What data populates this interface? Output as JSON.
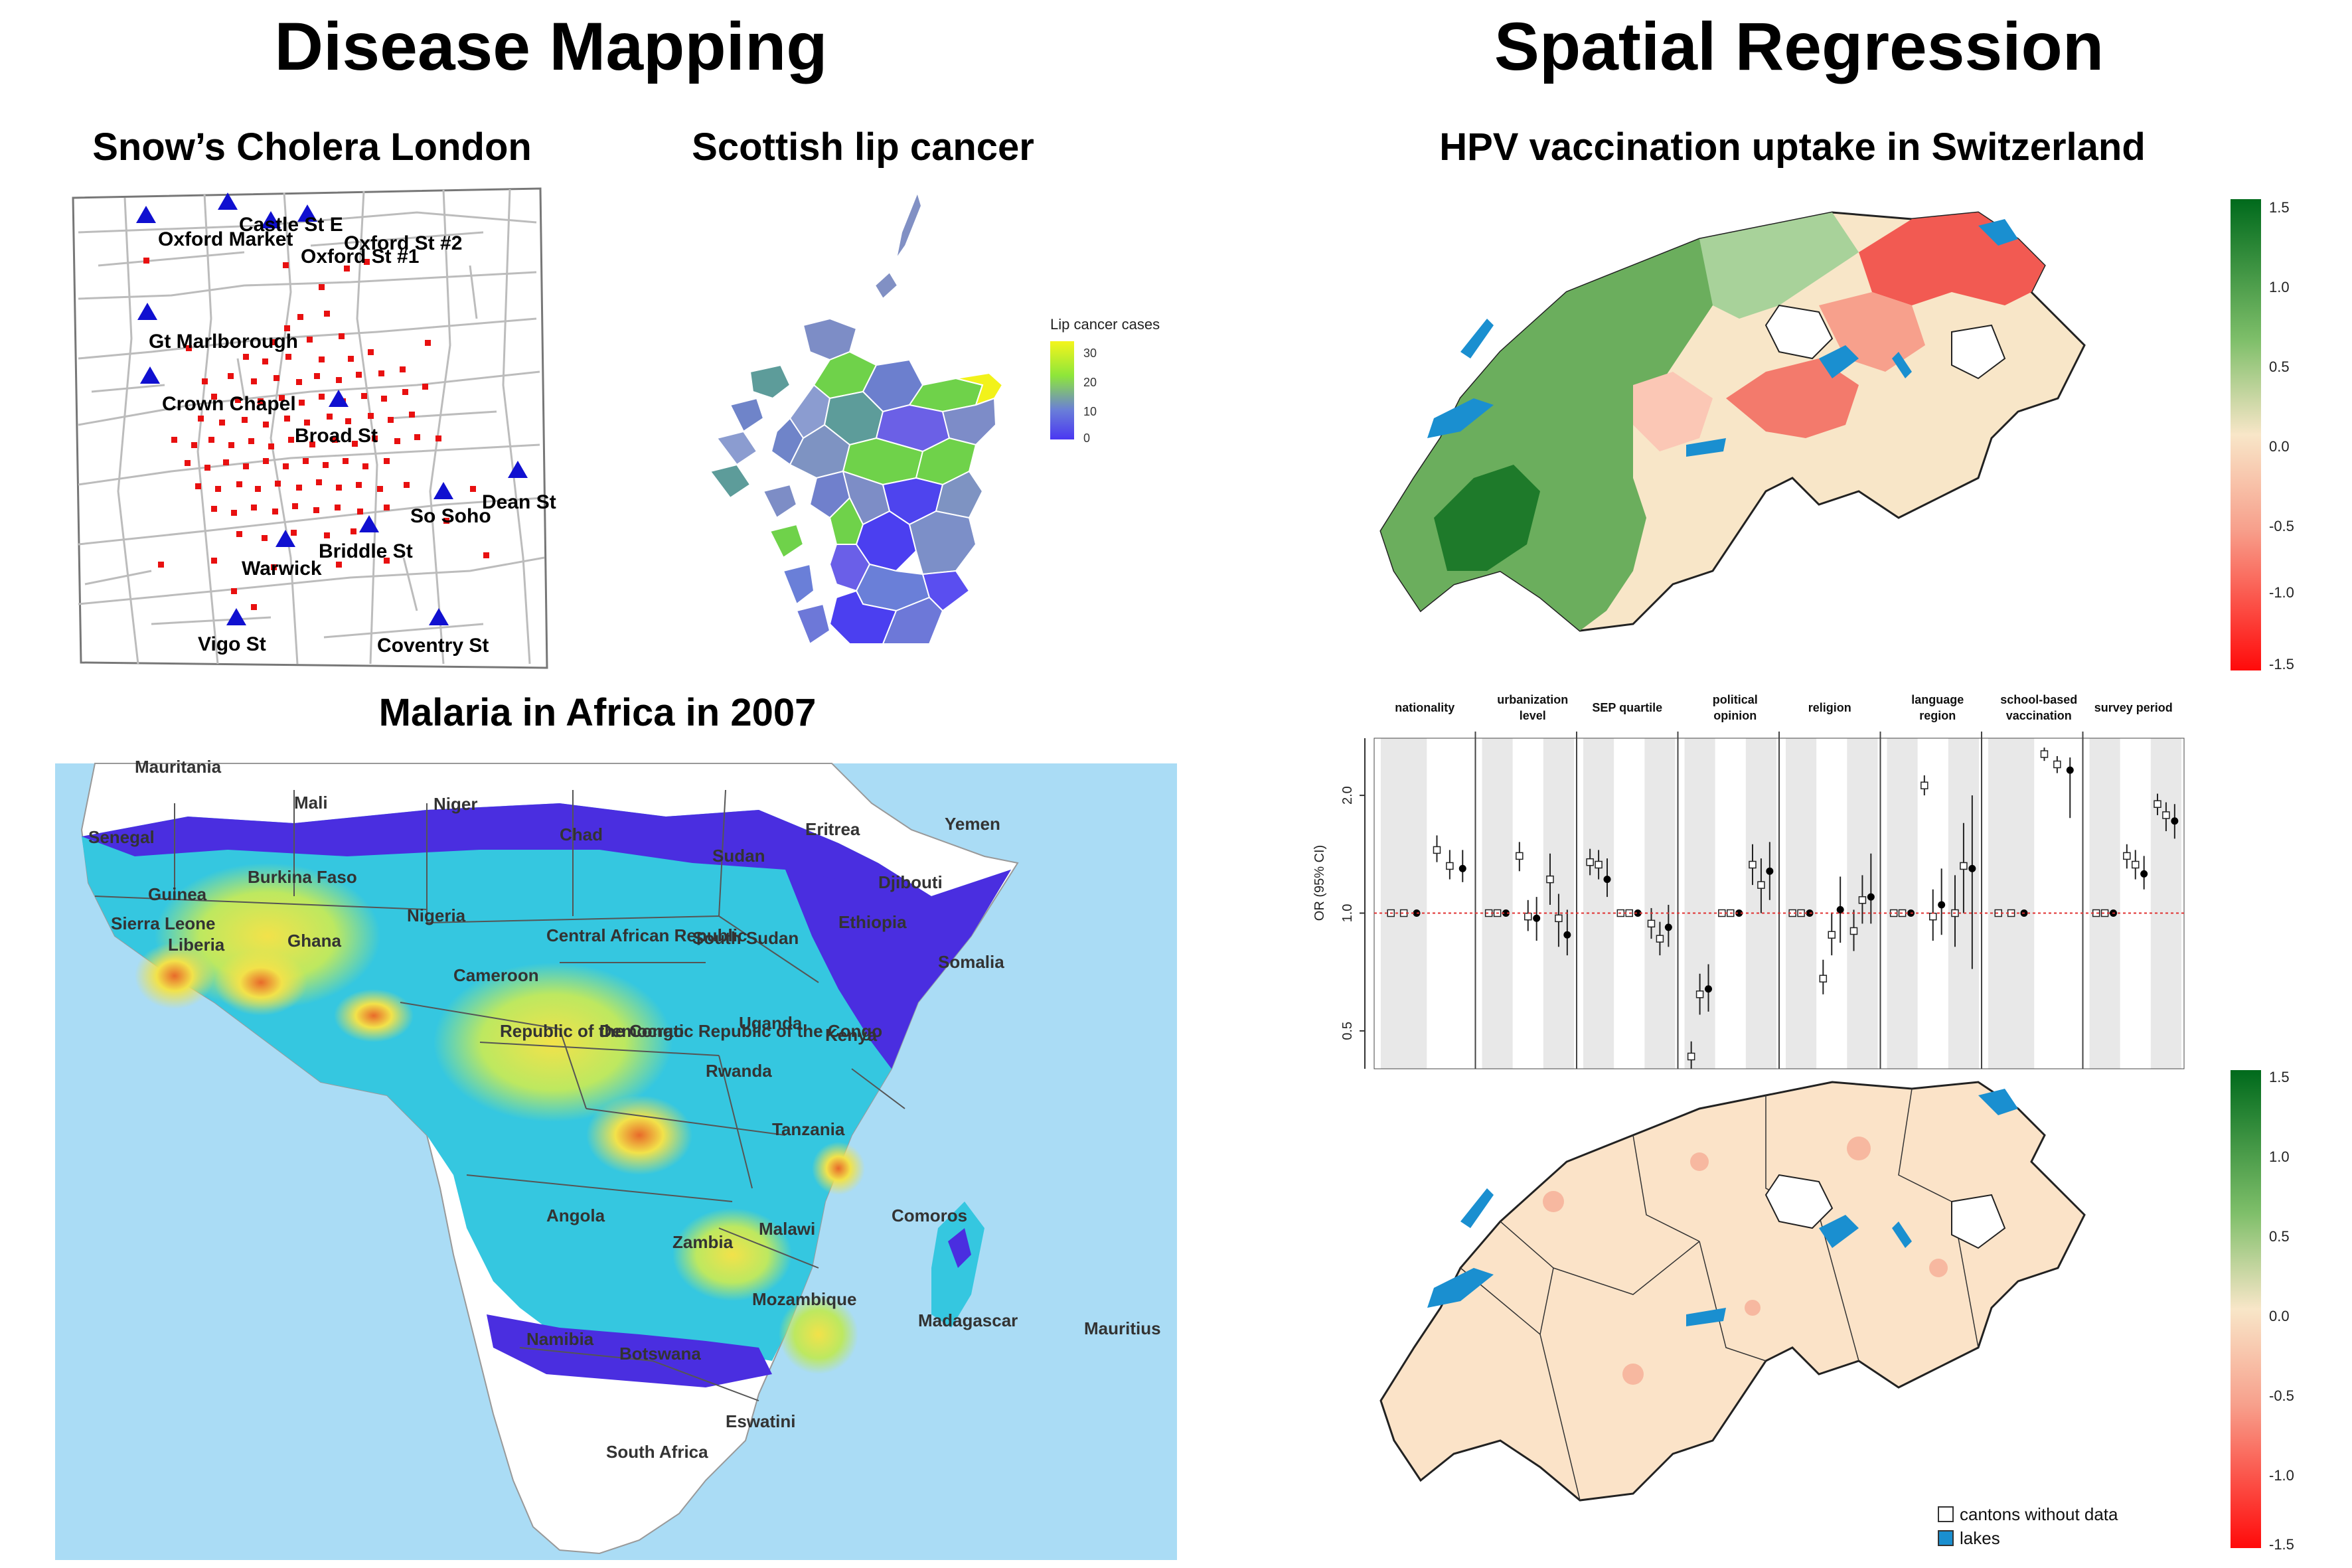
{
  "headings": {
    "left": "Disease Mapping",
    "right": "Spatial Regression"
  },
  "cholera": {
    "title": "Snow’s Cholera London",
    "pumps": [
      "Castle St E",
      "Oxford Market",
      "Oxford St #2",
      "Oxford St #1",
      "Gt Marlborough",
      "Crown Chapel",
      "Broad St",
      "Dean St",
      "So Soho",
      "Briddle St",
      "Warwick",
      "Vigo St",
      "Coventry St"
    ],
    "marker_colors": {
      "pump": "#1010d0",
      "death": "#e81010"
    }
  },
  "scotland": {
    "title": "Scottish lip cancer",
    "legend_title": "Lip cancer cases",
    "legend_ticks": [
      "30",
      "20",
      "10",
      "0"
    ],
    "colors": [
      "#4b3ff0",
      "#7d8cc8",
      "#6fd24a",
      "#f2f21a"
    ]
  },
  "malaria": {
    "title": "Malaria in Africa in 2007",
    "countries": [
      "Mauritania",
      "Mali",
      "Niger",
      "Chad",
      "Eritrea",
      "Yemen",
      "Senegal",
      "Sudan",
      "Djibouti",
      "Burkina Faso",
      "Guinea",
      "Nigeria",
      "Ethiopia",
      "Sierra Leone",
      "Liberia",
      "Ghana",
      "Central African Republic",
      "South Sudan",
      "Somalia",
      "Cameroon",
      "Uganda",
      "Kenya",
      "Republic of the Congo",
      "Democratic Republic of the Congo",
      "Rwanda",
      "Tanzania",
      "Angola",
      "Comoros",
      "Zambia",
      "Malawi",
      "Mozambique",
      "Madagascar",
      "Mauritius",
      "Namibia",
      "Botswana",
      "Eswatini",
      "South Africa"
    ],
    "colors": {
      "ocean": "#aadcf5",
      "low": "#4a2ee0",
      "mid": "#35c7e0",
      "high": "#f2e24a",
      "peak": "#e86a2a"
    }
  },
  "hpv": {
    "title": "HPV vaccination uptake in Switzerland",
    "scale_ticks": [
      "1.5",
      "1.0",
      "0.5",
      "0.0",
      "-0.5",
      "-1.0",
      "-1.5"
    ],
    "legend": {
      "no_data": "cantons without data",
      "lakes": "lakes"
    },
    "colors": {
      "positive": "#1e7a2a",
      "negative": "#ff1010",
      "neutral": "#f8e6c8",
      "lake": "#1a8fd0"
    }
  },
  "chart_data": {
    "type": "scatter",
    "ylabel": "OR (95% CI)",
    "yscale": "log",
    "ylim": [
      0.4,
      2.8
    ],
    "yticks": [
      "0.5",
      "1.0",
      "2.0"
    ],
    "reference_line": 1.0,
    "panels": [
      {
        "title": "nationality",
        "points": [
          {
            "or": 1.0,
            "lo": 0.98,
            "hi": 1.02,
            "filled": false
          },
          {
            "or": 1.0,
            "lo": 0.98,
            "hi": 1.02,
            "filled": false
          },
          {
            "or": 1.0,
            "lo": 0.98,
            "hi": 1.02,
            "filled": true
          },
          {
            "or": 1.45,
            "lo": 1.35,
            "hi": 1.58,
            "filled": false
          },
          {
            "or": 1.32,
            "lo": 1.22,
            "hi": 1.45,
            "filled": false
          },
          {
            "or": 1.3,
            "lo": 1.2,
            "hi": 1.45,
            "filled": true
          }
        ]
      },
      {
        "title": "urbanization level",
        "points": [
          {
            "or": 1.0,
            "lo": 0.98,
            "hi": 1.02,
            "filled": false
          },
          {
            "or": 1.0,
            "lo": 0.98,
            "hi": 1.02,
            "filled": false
          },
          {
            "or": 1.0,
            "lo": 0.98,
            "hi": 1.02,
            "filled": true
          },
          {
            "or": 1.4,
            "lo": 1.28,
            "hi": 1.52,
            "filled": false
          },
          {
            "or": 0.98,
            "lo": 0.9,
            "hi": 1.08,
            "filled": false
          },
          {
            "or": 0.97,
            "lo": 0.85,
            "hi": 1.1,
            "filled": true
          },
          {
            "or": 1.22,
            "lo": 1.05,
            "hi": 1.42,
            "filled": false
          },
          {
            "or": 0.97,
            "lo": 0.82,
            "hi": 1.12,
            "filled": false
          },
          {
            "or": 0.88,
            "lo": 0.78,
            "hi": 1.02,
            "filled": true
          }
        ]
      },
      {
        "title": "SEP quartile",
        "points": [
          {
            "or": 1.35,
            "lo": 1.25,
            "hi": 1.46,
            "filled": false
          },
          {
            "or": 1.33,
            "lo": 1.22,
            "hi": 1.45,
            "filled": false
          },
          {
            "or": 1.22,
            "lo": 1.1,
            "hi": 1.38,
            "filled": true
          },
          {
            "or": 1.0,
            "lo": 0.98,
            "hi": 1.02,
            "filled": false
          },
          {
            "or": 1.0,
            "lo": 0.98,
            "hi": 1.02,
            "filled": false
          },
          {
            "or": 1.0,
            "lo": 0.98,
            "hi": 1.02,
            "filled": true
          },
          {
            "or": 0.94,
            "lo": 0.86,
            "hi": 1.03,
            "filled": false
          },
          {
            "or": 0.86,
            "lo": 0.78,
            "hi": 0.95,
            "filled": false
          },
          {
            "or": 0.92,
            "lo": 0.82,
            "hi": 1.05,
            "filled": true
          }
        ]
      },
      {
        "title": "political opinion",
        "points": [
          {
            "or": 0.43,
            "lo": 0.4,
            "hi": 0.47,
            "filled": false
          },
          {
            "or": 0.62,
            "lo": 0.55,
            "hi": 0.7,
            "filled": false
          },
          {
            "or": 0.64,
            "lo": 0.56,
            "hi": 0.74,
            "filled": true
          },
          {
            "or": 1.0,
            "lo": 0.98,
            "hi": 1.02,
            "filled": false
          },
          {
            "or": 1.0,
            "lo": 0.98,
            "hi": 1.02,
            "filled": false
          },
          {
            "or": 1.0,
            "lo": 0.98,
            "hi": 1.02,
            "filled": true
          },
          {
            "or": 1.33,
            "lo": 1.18,
            "hi": 1.5,
            "filled": false
          },
          {
            "or": 1.18,
            "lo": 1.0,
            "hi": 1.38,
            "filled": false
          },
          {
            "or": 1.28,
            "lo": 1.08,
            "hi": 1.52,
            "filled": true
          }
        ]
      },
      {
        "title": "religion",
        "points": [
          {
            "or": 1.0,
            "lo": 0.98,
            "hi": 1.02,
            "filled": false
          },
          {
            "or": 1.0,
            "lo": 0.98,
            "hi": 1.02,
            "filled": false
          },
          {
            "or": 1.0,
            "lo": 0.98,
            "hi": 1.02,
            "filled": true
          },
          {
            "or": 0.68,
            "lo": 0.62,
            "hi": 0.76,
            "filled": false
          },
          {
            "or": 0.88,
            "lo": 0.78,
            "hi": 1.0,
            "filled": false
          },
          {
            "or": 1.02,
            "lo": 0.84,
            "hi": 1.24,
            "filled": true
          },
          {
            "or": 0.9,
            "lo": 0.8,
            "hi": 1.02,
            "filled": false
          },
          {
            "or": 1.08,
            "lo": 0.94,
            "hi": 1.25,
            "filled": false
          },
          {
            "or": 1.1,
            "lo": 0.94,
            "hi": 1.42,
            "filled": true
          }
        ]
      },
      {
        "title": "language region",
        "points": [
          {
            "or": 1.0,
            "lo": 0.98,
            "hi": 1.02,
            "filled": false
          },
          {
            "or": 1.0,
            "lo": 0.98,
            "hi": 1.02,
            "filled": false
          },
          {
            "or": 1.0,
            "lo": 0.98,
            "hi": 1.02,
            "filled": true
          },
          {
            "or": 2.12,
            "lo": 2.0,
            "hi": 2.25,
            "filled": false
          },
          {
            "or": 0.98,
            "lo": 0.85,
            "hi": 1.15,
            "filled": false
          },
          {
            "or": 1.05,
            "lo": 0.88,
            "hi": 1.3,
            "filled": true
          },
          {
            "or": 1.0,
            "lo": 0.82,
            "hi": 1.25,
            "filled": false
          },
          {
            "or": 1.32,
            "lo": 1.0,
            "hi": 1.7,
            "filled": false
          },
          {
            "or": 1.3,
            "lo": 0.72,
            "hi": 2.0,
            "filled": true
          }
        ]
      },
      {
        "title": "school-based vaccination",
        "points": [
          {
            "or": 1.0,
            "lo": 0.98,
            "hi": 1.02,
            "filled": false
          },
          {
            "or": 1.0,
            "lo": 0.98,
            "hi": 1.02,
            "filled": false
          },
          {
            "or": 1.0,
            "lo": 0.98,
            "hi": 1.02,
            "filled": true
          },
          {
            "or": 2.55,
            "lo": 2.45,
            "hi": 2.65,
            "filled": false
          },
          {
            "or": 2.4,
            "lo": 2.28,
            "hi": 2.52,
            "filled": false
          },
          {
            "or": 2.32,
            "lo": 1.75,
            "hi": 2.5,
            "filled": true
          }
        ]
      },
      {
        "title": "survey period",
        "points": [
          {
            "or": 1.0,
            "lo": 0.98,
            "hi": 1.02,
            "filled": false
          },
          {
            "or": 1.0,
            "lo": 0.98,
            "hi": 1.02,
            "filled": false
          },
          {
            "or": 1.0,
            "lo": 0.98,
            "hi": 1.02,
            "filled": true
          },
          {
            "or": 1.4,
            "lo": 1.3,
            "hi": 1.5,
            "filled": false
          },
          {
            "or": 1.33,
            "lo": 1.22,
            "hi": 1.45,
            "filled": false
          },
          {
            "or": 1.26,
            "lo": 1.15,
            "hi": 1.4,
            "filled": true
          },
          {
            "or": 1.9,
            "lo": 1.78,
            "hi": 2.02,
            "filled": false
          },
          {
            "or": 1.78,
            "lo": 1.62,
            "hi": 1.92,
            "filled": false
          },
          {
            "or": 1.72,
            "lo": 1.55,
            "hi": 1.9,
            "filled": true
          }
        ]
      }
    ]
  }
}
